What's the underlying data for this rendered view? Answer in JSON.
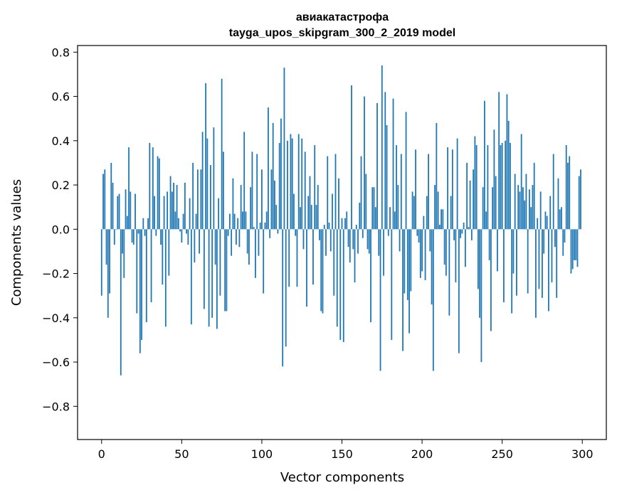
{
  "chart_data": {
    "type": "bar",
    "title_line1": "авиакатастрофа",
    "title_line2": "tayga_upos_skipgram_300_2_2019 model",
    "xlabel": "Vector components",
    "ylabel": "Components values",
    "xlim": [
      -15,
      315
    ],
    "ylim": [
      -0.95,
      0.83
    ],
    "xticks": [
      0,
      50,
      100,
      150,
      200,
      250,
      300
    ],
    "yticks": [
      -0.8,
      -0.6,
      -0.4,
      -0.2,
      0.0,
      0.2,
      0.4,
      0.6,
      0.8
    ],
    "ytick_labels": [
      "−0.8",
      "−0.6",
      "−0.4",
      "−0.2",
      "0.0",
      "0.2",
      "0.4",
      "0.6",
      "0.8"
    ],
    "bar_color": "#1f77b4",
    "grid": false,
    "values": [
      -0.3,
      0.25,
      0.27,
      -0.16,
      -0.4,
      -0.29,
      0.3,
      0.21,
      -0.07,
      0.0,
      0.15,
      0.16,
      -0.66,
      -0.11,
      -0.22,
      0.18,
      0.06,
      0.37,
      0.17,
      -0.06,
      -0.07,
      0.16,
      -0.38,
      -0.02,
      -0.56,
      -0.5,
      0.05,
      -0.03,
      -0.42,
      0.05,
      0.39,
      -0.33,
      0.37,
      0.15,
      -0.03,
      0.33,
      0.32,
      -0.07,
      -0.25,
      0.15,
      -0.44,
      0.17,
      -0.21,
      0.24,
      0.17,
      0.21,
      0.08,
      0.2,
      0.05,
      -0.01,
      -0.06,
      0.07,
      0.21,
      -0.02,
      -0.07,
      0.14,
      -0.43,
      0.3,
      -0.15,
      0.07,
      0.27,
      -0.11,
      0.27,
      0.44,
      -0.36,
      0.66,
      0.41,
      -0.44,
      0.29,
      -0.4,
      0.46,
      -0.16,
      -0.45,
      0.14,
      -0.3,
      0.68,
      0.35,
      -0.37,
      -0.37,
      -0.03,
      0.07,
      -0.12,
      0.23,
      0.07,
      -0.07,
      0.05,
      -0.08,
      0.2,
      0.08,
      0.44,
      0.08,
      -0.11,
      -0.16,
      0.19,
      0.35,
      0.01,
      -0.22,
      0.34,
      -0.12,
      0.03,
      0.27,
      -0.29,
      0.03,
      0.08,
      0.55,
      -0.04,
      0.27,
      0.48,
      0.22,
      0.11,
      -0.02,
      0.39,
      0.5,
      -0.62,
      0.73,
      -0.53,
      0.4,
      -0.26,
      0.43,
      0.41,
      0.16,
      -0.03,
      -0.26,
      0.43,
      0.1,
      0.41,
      -0.09,
      0.35,
      -0.35,
      0.15,
      0.24,
      0.11,
      -0.25,
      0.38,
      0.11,
      0.2,
      -0.05,
      -0.37,
      -0.38,
      0.02,
      -0.12,
      0.33,
      0.03,
      -0.1,
      0.16,
      -0.3,
      0.34,
      -0.44,
      0.23,
      -0.5,
      0.05,
      -0.51,
      0.05,
      0.08,
      -0.08,
      -0.15,
      0.65,
      -0.09,
      -0.24,
      0.02,
      -0.11,
      0.12,
      0.33,
      -0.04,
      0.6,
      0.25,
      -0.09,
      -0.11,
      -0.42,
      0.19,
      0.19,
      0.1,
      0.57,
      -0.12,
      -0.64,
      0.74,
      -0.21,
      0.62,
      0.47,
      -0.03,
      0.1,
      -0.5,
      0.59,
      0.08,
      0.38,
      0.2,
      -0.1,
      0.34,
      -0.55,
      -0.29,
      0.53,
      -0.32,
      -0.47,
      -0.28,
      0.17,
      0.15,
      0.36,
      -0.03,
      -0.06,
      -0.22,
      -0.19,
      0.06,
      -0.23,
      0.15,
      0.34,
      -0.1,
      -0.34,
      -0.64,
      0.2,
      0.48,
      0.17,
      0.02,
      0.09,
      0.09,
      -0.16,
      -0.21,
      0.37,
      -0.39,
      0.15,
      0.36,
      -0.05,
      -0.24,
      0.41,
      -0.56,
      -0.04,
      -0.02,
      0.03,
      -0.17,
      0.3,
      0.01,
      0.22,
      -0.05,
      0.27,
      0.42,
      0.38,
      -0.27,
      -0.4,
      -0.6,
      0.19,
      0.58,
      0.08,
      0.38,
      -0.14,
      -0.46,
      0.19,
      0.45,
      0.24,
      -0.19,
      0.62,
      0.38,
      0.39,
      -0.33,
      0.4,
      0.61,
      0.49,
      0.39,
      -0.38,
      -0.2,
      0.25,
      -0.3,
      0.2,
      0.17,
      0.43,
      0.19,
      0.13,
      0.25,
      -0.29,
      0.18,
      0.1,
      0.2,
      0.3,
      -0.4,
      0.05,
      -0.27,
      0.17,
      -0.31,
      -0.11,
      0.08,
      0.06,
      -0.37,
      0.15,
      -0.24,
      0.34,
      -0.08,
      -0.31,
      0.23,
      0.09,
      0.1,
      -0.12,
      -0.06,
      0.38,
      0.3,
      0.33,
      -0.2,
      -0.18,
      -0.14,
      -0.14,
      -0.17,
      0.24,
      0.27
    ]
  }
}
